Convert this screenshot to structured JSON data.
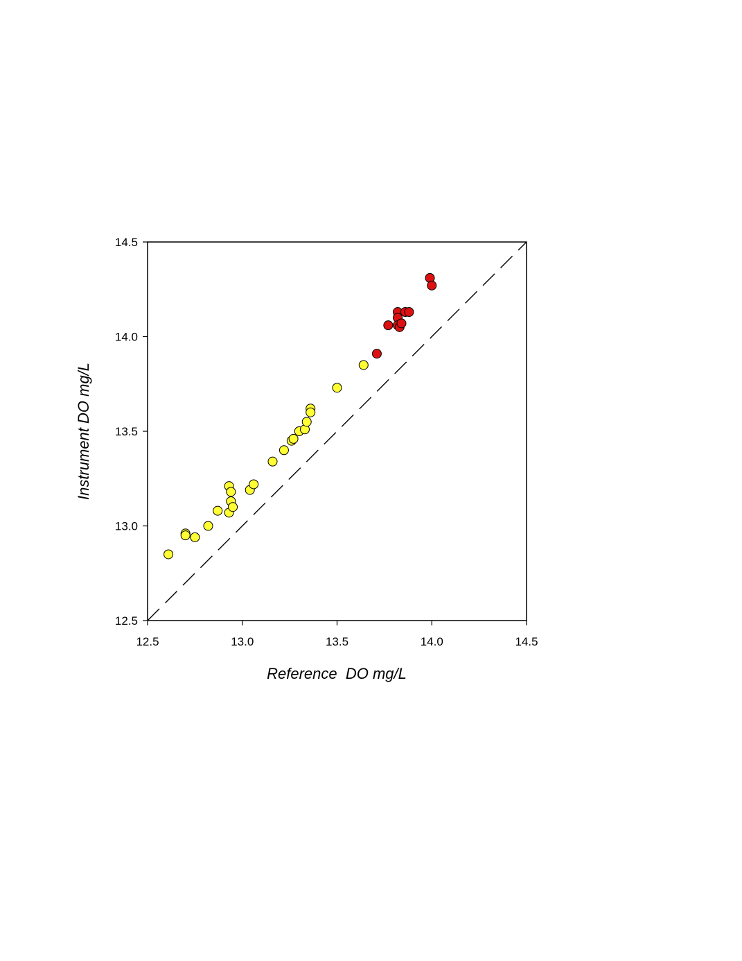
{
  "chart_data": {
    "type": "scatter",
    "xlabel": "Reference  DO mg/L",
    "ylabel": "Instrument DO mg/L",
    "xlim": [
      12.5,
      14.5
    ],
    "ylim": [
      12.5,
      14.5
    ],
    "x_ticks": [
      "12.5",
      "13.0",
      "13.5",
      "14.0",
      "14.5"
    ],
    "y_ticks": [
      "12.5",
      "13.0",
      "13.5",
      "14.0",
      "14.5"
    ],
    "grid": false,
    "reference_line": {
      "style": "dashed",
      "x": [
        12.5,
        14.5
      ],
      "y": [
        12.5,
        14.5
      ]
    },
    "series": [
      {
        "color": "#ffff33",
        "points": [
          [
            12.61,
            12.85
          ],
          [
            12.7,
            12.96
          ],
          [
            12.7,
            12.95
          ],
          [
            12.75,
            12.94
          ],
          [
            12.82,
            13.0
          ],
          [
            12.87,
            13.08
          ],
          [
            12.93,
            13.07
          ],
          [
            12.93,
            13.21
          ],
          [
            12.94,
            13.18
          ],
          [
            12.94,
            13.13
          ],
          [
            12.95,
            13.1
          ],
          [
            13.04,
            13.19
          ],
          [
            13.06,
            13.22
          ],
          [
            13.16,
            13.34
          ],
          [
            13.22,
            13.4
          ],
          [
            13.26,
            13.45
          ],
          [
            13.27,
            13.46
          ],
          [
            13.3,
            13.5
          ],
          [
            13.33,
            13.51
          ],
          [
            13.34,
            13.55
          ],
          [
            13.36,
            13.62
          ],
          [
            13.36,
            13.6
          ],
          [
            13.5,
            13.73
          ],
          [
            13.64,
            13.85
          ]
        ]
      },
      {
        "color": "#dd1111",
        "points": [
          [
            13.71,
            13.91
          ],
          [
            13.77,
            14.06
          ],
          [
            13.82,
            14.13
          ],
          [
            13.82,
            14.1
          ],
          [
            13.82,
            14.06
          ],
          [
            13.83,
            14.05
          ],
          [
            13.84,
            14.07
          ],
          [
            13.86,
            14.13
          ],
          [
            13.88,
            14.13
          ],
          [
            13.99,
            14.31
          ],
          [
            14.0,
            14.27
          ]
        ]
      }
    ]
  }
}
